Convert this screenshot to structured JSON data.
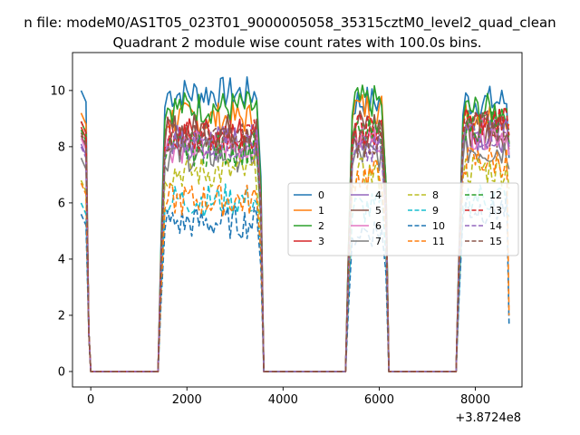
{
  "figure": {
    "suptitle": "n file: modeM0/AS1T05_023T01_9000005058_35315cztM0_level2_quad_clean",
    "title": "Quadrant 2 module wise count rates with 100.0s bins.",
    "offset_label": "+3.8724e8"
  },
  "chart_data": {
    "type": "line",
    "x_offset": 387240000,
    "xlim": [
      -380,
      8970
    ],
    "ylim": [
      -0.55,
      11.35
    ],
    "xticks": [
      0,
      2000,
      4000,
      6000,
      8000
    ],
    "yticks": [
      0,
      2,
      4,
      6,
      8,
      10
    ],
    "xtick_labels": [
      "0",
      "2000",
      "4000",
      "6000",
      "8000"
    ],
    "ytick_labels": [
      "0",
      "2",
      "4",
      "6",
      "8",
      "10"
    ],
    "grid": false,
    "legend": {
      "location": "center-right",
      "ncol": 4
    },
    "segments": [
      [
        -200,
        1400
      ],
      [
        1400,
        3600
      ],
      [
        3600,
        5300
      ],
      [
        5300,
        6200
      ],
      [
        6200,
        7600
      ],
      [
        7600,
        8700
      ]
    ],
    "series": [
      {
        "name": "0",
        "color": "#1f77b4",
        "dash": "solid",
        "level": 9.9,
        "levels": [
          10.0,
          9.9,
          9.6,
          9.6
        ],
        "edge": 10.0,
        "end": 7.6
      },
      {
        "name": "1",
        "color": "#ff7f0e",
        "dash": "solid",
        "level": 9.0,
        "levels": [
          9.2,
          9.0,
          9.4,
          9.1
        ],
        "edge": 9.2,
        "end": 8.8
      },
      {
        "name": "2",
        "color": "#2ca02c",
        "dash": "solid",
        "level": 9.3,
        "levels": [
          8.9,
          9.4,
          9.6,
          9.3
        ],
        "edge": 8.9,
        "end": 8.6
      },
      {
        "name": "3",
        "color": "#d62728",
        "dash": "solid",
        "level": 8.5,
        "levels": [
          8.7,
          8.5,
          8.4,
          8.6
        ],
        "edge": 8.7,
        "end": 8.1
      },
      {
        "name": "4",
        "color": "#9467bd",
        "dash": "solid",
        "level": 8.2,
        "levels": [
          8.1,
          8.2,
          8.3,
          8.4
        ],
        "edge": 8.1,
        "end": 8.0
      },
      {
        "name": "5",
        "color": "#8c564b",
        "dash": "solid",
        "level": 8.6,
        "levels": [
          8.4,
          8.6,
          8.8,
          8.5
        ],
        "edge": 8.4,
        "end": 7.9
      },
      {
        "name": "6",
        "color": "#e377c2",
        "dash": "solid",
        "level": 8.0,
        "levels": [
          8.3,
          8.0,
          8.3,
          8.5
        ],
        "edge": 8.3,
        "end": 7.7
      },
      {
        "name": "7",
        "color": "#7f7f7f",
        "dash": "solid",
        "level": 7.7,
        "levels": [
          7.6,
          7.7,
          7.7,
          7.9
        ],
        "edge": 7.6,
        "end": 7.2
      },
      {
        "name": "8",
        "color": "#bcbd22",
        "dash": "dashed",
        "level": 7.1,
        "levels": [
          6.8,
          7.1,
          7.0,
          7.2
        ],
        "edge": 6.8,
        "end": 6.5
      },
      {
        "name": "9",
        "color": "#17becf",
        "dash": "dashed",
        "level": 6.1,
        "levels": [
          6.0,
          6.1,
          5.8,
          6.2
        ],
        "edge": 6.0,
        "end": 5.5
      },
      {
        "name": "10",
        "color": "#1f77b4",
        "dash": "dashed",
        "level": 5.3,
        "levels": [
          5.6,
          5.3,
          5.0,
          5.8
        ],
        "edge": 5.6,
        "end": 1.7
      },
      {
        "name": "11",
        "color": "#ff7f0e",
        "dash": "dashed",
        "level": 6.1,
        "levels": [
          6.7,
          6.1,
          7.0,
          7.5
        ],
        "edge": 6.7,
        "end": 2.0
      },
      {
        "name": "12",
        "color": "#2ca02c",
        "dash": "dashed",
        "level": 7.9,
        "levels": [
          8.6,
          7.9,
          8.4,
          8.8
        ],
        "edge": 8.6,
        "end": 8.1
      },
      {
        "name": "13",
        "color": "#d62728",
        "dash": "dashed",
        "level": 8.4,
        "levels": [
          8.9,
          8.4,
          8.6,
          8.9
        ],
        "edge": 8.9,
        "end": 8.4
      },
      {
        "name": "14",
        "color": "#9467bd",
        "dash": "dashed",
        "level": 8.1,
        "levels": [
          8.0,
          8.1,
          7.8,
          8.5
        ],
        "edge": 8.0,
        "end": 8.0
      },
      {
        "name": "15",
        "color": "#8c564b",
        "dash": "dashed",
        "level": 8.3,
        "levels": [
          8.5,
          8.3,
          8.2,
          8.7
        ],
        "edge": 8.5,
        "end": 8.2
      }
    ]
  }
}
